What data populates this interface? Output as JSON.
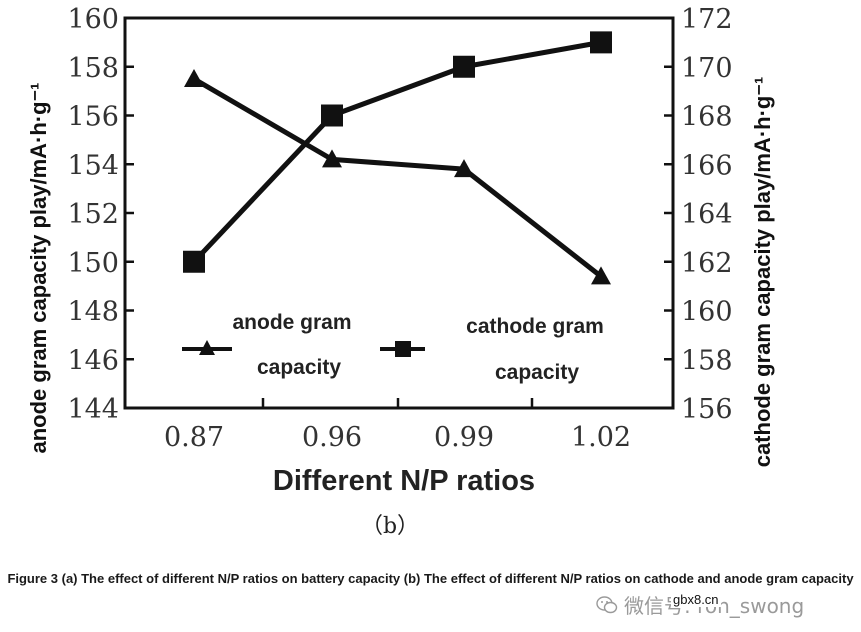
{
  "chart_data": {
    "type": "line",
    "x_title": "Different N/P ratios",
    "categories": [
      "0.87",
      "0.96",
      "0.99",
      "1.02"
    ],
    "y_left": {
      "label": "anode gram capacity play/mA·h·g⁻¹",
      "range": [
        144,
        160
      ],
      "ticks": [
        "144",
        "146",
        "148",
        "150",
        "152",
        "154",
        "156",
        "158",
        "160"
      ]
    },
    "y_right": {
      "label": "cathode gram capacity play/mA·h·g⁻¹",
      "range": [
        156,
        172
      ],
      "ticks": [
        "156",
        "158",
        "160",
        "162",
        "164",
        "166",
        "168",
        "170",
        "172"
      ]
    },
    "series": [
      {
        "name": "anode gram capacity",
        "axis": "left",
        "marker": "triangle",
        "values": [
          157.5,
          154.2,
          153.8,
          149.4
        ]
      },
      {
        "name": "cathode gram capacity",
        "axis": "right",
        "marker": "square",
        "values": [
          162,
          168,
          170,
          171
        ]
      }
    ],
    "legend": {
      "anode_line1": "anode gram",
      "anode_line2": "capacity",
      "cathode_line1": "cathode gram",
      "cathode_line2": "capacity"
    },
    "panel_label": "（b）"
  },
  "caption": "Figure 3 (a) The effect of different N/P ratios on battery capacity (b) The effect of different N/P ratios on cathode and anode gram capacity",
  "watermark": "微信号: ron_swong",
  "watermark_sub": "gbx8.cn"
}
